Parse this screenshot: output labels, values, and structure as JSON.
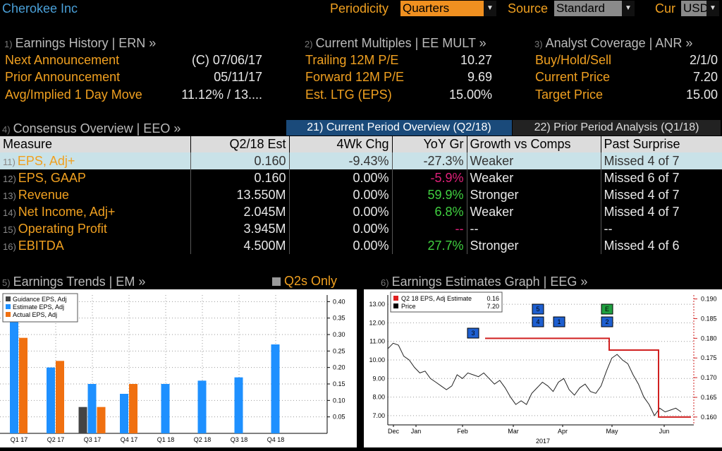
{
  "header": {
    "company": "Cherokee Inc",
    "periodicity_label": "Periodicity",
    "periodicity_value": "Quarters",
    "source_label": "Source",
    "source_value": "Standard",
    "cur_label": "Cur",
    "cur_value": "USD"
  },
  "earnings_history": {
    "num": "1)",
    "title": "Earnings History | ERN »",
    "rows": [
      {
        "label": "Next Announcement",
        "value": "(C)  07/06/17"
      },
      {
        "label": "Prior Announcement",
        "value": "05/11/17"
      },
      {
        "label": "Avg/Implied 1 Day Move",
        "value": "11.12% / 13...."
      }
    ]
  },
  "current_multiples": {
    "num": "2)",
    "title": "Current Multiples | EE MULT »",
    "rows": [
      {
        "label": "Trailing 12M P/E",
        "value": "10.27"
      },
      {
        "label": "Forward 12M P/E",
        "value": "9.69"
      },
      {
        "label": "Est. LTG (EPS)",
        "value": "15.00%"
      }
    ]
  },
  "analyst_coverage": {
    "num": "3)",
    "title": "Analyst Coverage | ANR »",
    "rows": [
      {
        "label": "Buy/Hold/Sell",
        "value": "2/1/0"
      },
      {
        "label": "Current Price",
        "value": "7.20"
      },
      {
        "label": "Target Price",
        "value": "15.00"
      }
    ]
  },
  "consensus": {
    "num": "4)",
    "title": "Consensus Overview | EEO »",
    "tab_current": "21) Current Period Overview (Q2/18)",
    "tab_prior": "22) Prior Period Analysis (Q1/18)",
    "columns": [
      "Measure",
      "Q2/18 Est",
      "4Wk Chg",
      "YoY Gr",
      "Growth vs Comps",
      "Past Surprise"
    ],
    "rows": [
      {
        "n": "11)",
        "measure": "EPS, Adj+",
        "est": "0.160",
        "chg": "-9.43%",
        "yoy": "-27.3%",
        "growth": "Weaker",
        "surprise": "Missed 4 of 7"
      },
      {
        "n": "12)",
        "measure": "EPS, GAAP",
        "est": "0.160",
        "chg": "0.00%",
        "yoy": "-5.9%",
        "growth": "Weaker",
        "surprise": "Missed 6 of 7"
      },
      {
        "n": "13)",
        "measure": "Revenue",
        "est": "13.550M",
        "chg": "0.00%",
        "yoy": "59.9%",
        "growth": "Stronger",
        "surprise": "Missed 4 of 7"
      },
      {
        "n": "14)",
        "measure": "Net Income, Adj+",
        "est": "2.045M",
        "chg": "0.00%",
        "yoy": "6.8%",
        "growth": "Weaker",
        "surprise": "Missed 4 of 7"
      },
      {
        "n": "15)",
        "measure": "Operating Profit",
        "est": "3.945M",
        "chg": "0.00%",
        "yoy": "--",
        "growth": "--",
        "surprise": "--"
      },
      {
        "n": "16)",
        "measure": "EBITDA",
        "est": "4.500M",
        "chg": "0.00%",
        "yoy": "27.7%",
        "growth": "Stronger",
        "surprise": "Missed 4 of 6"
      }
    ]
  },
  "earnings_trends": {
    "num": "5)",
    "title": "Earnings Trends | EM »",
    "toggle": "Q2s Only"
  },
  "estimates_graph": {
    "num": "6)",
    "title": "Earnings Estimates Graph | EEG »"
  },
  "chart_data": [
    {
      "type": "bar",
      "categories": [
        "Q1 17",
        "Q2 17",
        "Q3 17",
        "Q4 17",
        "Q1 18",
        "Q2 18",
        "Q3 18",
        "Q4 18"
      ],
      "series": [
        {
          "name": "Guidance EPS, Adj",
          "color": "#444444",
          "values": [
            null,
            null,
            0.08,
            null,
            null,
            null,
            null,
            null
          ]
        },
        {
          "name": "Estimate EPS, Adj",
          "color": "#1e90ff",
          "values": [
            0.34,
            0.2,
            0.15,
            0.12,
            0.15,
            0.16,
            0.17,
            0.27
          ]
        },
        {
          "name": "Actual EPS, Adj",
          "color": "#f07010",
          "values": [
            0.29,
            0.22,
            0.08,
            0.15,
            null,
            null,
            null,
            null
          ]
        }
      ],
      "ylim": [
        0,
        0.42
      ],
      "yticks": [
        "0.05",
        "0.10",
        "0.15",
        "0.20",
        "0.25",
        "0.30",
        "0.35",
        "0.40"
      ],
      "grid": true,
      "legend": "top-left"
    },
    {
      "type": "line",
      "x_ticks": [
        "Dec",
        "Jan",
        "Feb",
        "Mar",
        "Apr",
        "May",
        "Jun"
      ],
      "year_label": "2017",
      "y_left_ticks": [
        "7.00",
        "8.00",
        "9.00",
        "10.00",
        "11.00",
        "12.00",
        "13.00"
      ],
      "y_right_ticks": [
        "0.160",
        "0.165",
        "0.170",
        "0.175",
        "0.180",
        "0.185",
        "0.190"
      ],
      "ylim_left": [
        6.5,
        13.5
      ],
      "ylim_right": [
        0.158,
        0.191
      ],
      "legend": [
        {
          "name": "Q2 18 EPS, Adj Estimate",
          "value": "0.16",
          "color": "#e02020"
        },
        {
          "name": "Price",
          "value": "7.20",
          "color": "#000000"
        }
      ],
      "price_series": [
        10.6,
        10.9,
        10.8,
        10.2,
        10.0,
        9.6,
        9.3,
        9.4,
        9.0,
        8.8,
        8.6,
        8.4,
        8.6,
        9.2,
        9.0,
        9.3,
        9.2,
        9.1,
        9.3,
        9.0,
        8.7,
        8.9,
        8.5,
        8.0,
        7.6,
        7.8,
        7.6,
        8.2,
        8.5,
        8.8,
        8.6,
        8.3,
        8.8,
        9.0,
        8.4,
        8.1,
        8.5,
        8.7,
        8.3,
        8.2,
        8.6,
        9.4,
        10.1,
        10.3,
        10.0,
        9.8,
        9.2,
        8.7,
        8.0,
        7.6,
        7.0,
        7.4,
        7.2,
        7.3,
        7.4,
        7.2
      ],
      "estimate_series": [
        {
          "from": "Feb",
          "to": "May",
          "value": 0.18
        },
        {
          "from": "May",
          "to": "Jun",
          "value": 0.177
        },
        {
          "from": "Jun",
          "to": "end",
          "value": 0.16
        }
      ],
      "markers": [
        "3",
        "5",
        "4",
        "1",
        "E",
        "2"
      ]
    }
  ]
}
